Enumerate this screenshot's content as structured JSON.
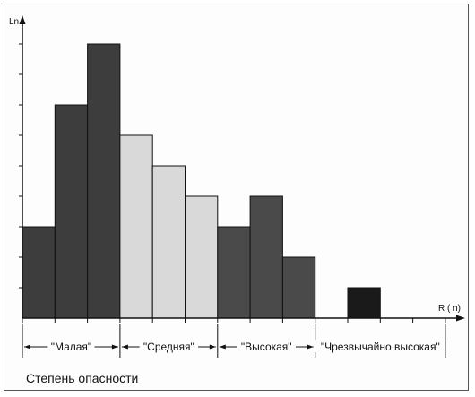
{
  "chart_data": {
    "type": "bar",
    "ylabel": "Ln",
    "xlabel": "R ( n)",
    "ylim": [
      0,
      9
    ],
    "grid": false,
    "bars": [
      {
        "group": "\"Малая\"",
        "value": 3.0,
        "color": "#3d3d3d"
      },
      {
        "group": "\"Малая\"",
        "value": 7.0,
        "color": "#3d3d3d"
      },
      {
        "group": "\"Малая\"",
        "value": 9.0,
        "color": "#3d3d3d"
      },
      {
        "group": "\"Средняя\"",
        "value": 6.0,
        "color": "#d9d9d9"
      },
      {
        "group": "\"Средняя\"",
        "value": 5.0,
        "color": "#d9d9d9"
      },
      {
        "group": "\"Средняя\"",
        "value": 4.0,
        "color": "#d9d9d9"
      },
      {
        "group": "\"Высокая\"",
        "value": 3.0,
        "color": "#4a4a4a"
      },
      {
        "group": "\"Высокая\"",
        "value": 4.0,
        "color": "#4a4a4a"
      },
      {
        "group": "\"Высокая\"",
        "value": 2.0,
        "color": "#4a4a4a"
      },
      {
        "group": "\"Чрезвычайно высокая\"",
        "value": 0,
        "color": "#ffffff"
      },
      {
        "group": "\"Чрезвычайно высокая\"",
        "value": 1.0,
        "color": "#1a1a1a"
      }
    ],
    "groups": [
      "\"Малая\"",
      "\"Средняя\"",
      "\"Высокая\"",
      "\"Чрезвычайно высокая\""
    ]
  },
  "caption": "Степень опасности"
}
